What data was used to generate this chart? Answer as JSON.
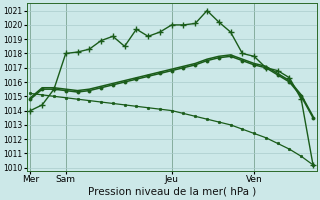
{
  "background_color": "#cce8e8",
  "grid_color": "#aacccc",
  "line_color": "#1a5c1a",
  "title": "Pression niveau de la mer( hPa )",
  "ylim": [
    1009.8,
    1021.5
  ],
  "yticks": [
    1010,
    1011,
    1012,
    1013,
    1014,
    1015,
    1016,
    1017,
    1018,
    1019,
    1020,
    1021
  ],
  "xtick_labels": [
    "Mer",
    "Sam",
    "Jeu",
    "Ven"
  ],
  "xtick_pos": [
    0,
    3,
    12,
    19
  ],
  "vline_positions": [
    0,
    3,
    12,
    19
  ],
  "n_points": 25,
  "series1_y": [
    1014.0,
    1014.4,
    1015.5,
    1018.0,
    1018.1,
    1018.3,
    1018.9,
    1019.2,
    1018.5,
    1019.7,
    1019.2,
    1019.5,
    1020.0,
    1020.0,
    1020.1,
    1021.0,
    1020.2,
    1019.5,
    1018.0,
    1017.8,
    1017.0,
    1016.8,
    1016.3,
    1014.8,
    1010.2
  ],
  "series2_y": [
    1014.8,
    1015.5,
    1015.5,
    1015.4,
    1015.3,
    1015.4,
    1015.6,
    1015.8,
    1016.0,
    1016.2,
    1016.4,
    1016.6,
    1016.8,
    1017.0,
    1017.2,
    1017.5,
    1017.7,
    1017.8,
    1017.5,
    1017.2,
    1017.0,
    1016.5,
    1016.0,
    1015.0,
    1013.5
  ],
  "series3_y": [
    1014.9,
    1015.6,
    1015.6,
    1015.5,
    1015.4,
    1015.5,
    1015.7,
    1015.9,
    1016.1,
    1016.3,
    1016.5,
    1016.7,
    1016.9,
    1017.1,
    1017.3,
    1017.6,
    1017.8,
    1017.9,
    1017.6,
    1017.3,
    1017.1,
    1016.6,
    1016.1,
    1015.1,
    1013.6
  ],
  "series4_y": [
    1015.2,
    1015.1,
    1015.0,
    1014.9,
    1014.8,
    1014.7,
    1014.6,
    1014.5,
    1014.4,
    1014.3,
    1014.2,
    1014.1,
    1014.0,
    1013.8,
    1013.6,
    1013.4,
    1013.2,
    1013.0,
    1012.7,
    1012.4,
    1012.1,
    1011.7,
    1011.3,
    1010.8,
    1010.2
  ]
}
